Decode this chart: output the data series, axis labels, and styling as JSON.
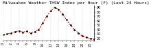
{
  "title": "Milwaukee Weather THSW Index per Hour (F) (Last 24 Hours)",
  "hours": [
    0,
    1,
    2,
    3,
    4,
    5,
    6,
    7,
    8,
    9,
    10,
    11,
    12,
    13,
    14,
    15,
    16,
    17,
    18,
    19,
    20,
    21,
    22,
    23
  ],
  "values": [
    28,
    30,
    32,
    35,
    37,
    34,
    36,
    32,
    35,
    40,
    55,
    70,
    82,
    90,
    86,
    75,
    62,
    50,
    40,
    32,
    25,
    22,
    20,
    18
  ],
  "xlim": [
    0,
    23
  ],
  "ylim": [
    15,
    95
  ],
  "yticks": [
    20,
    30,
    40,
    50,
    60,
    70,
    80,
    90
  ],
  "ytick_labels": [
    "20",
    "30",
    "40",
    "50",
    "60",
    "70",
    "80",
    "90"
  ],
  "line_color": "#cc0000",
  "marker_color": "#000000",
  "bg_color": "#ffffff",
  "grid_color": "#999999",
  "title_color": "#000000",
  "title_fontsize": 4.5,
  "tick_fontsize": 3.5,
  "xtick_step": 2
}
